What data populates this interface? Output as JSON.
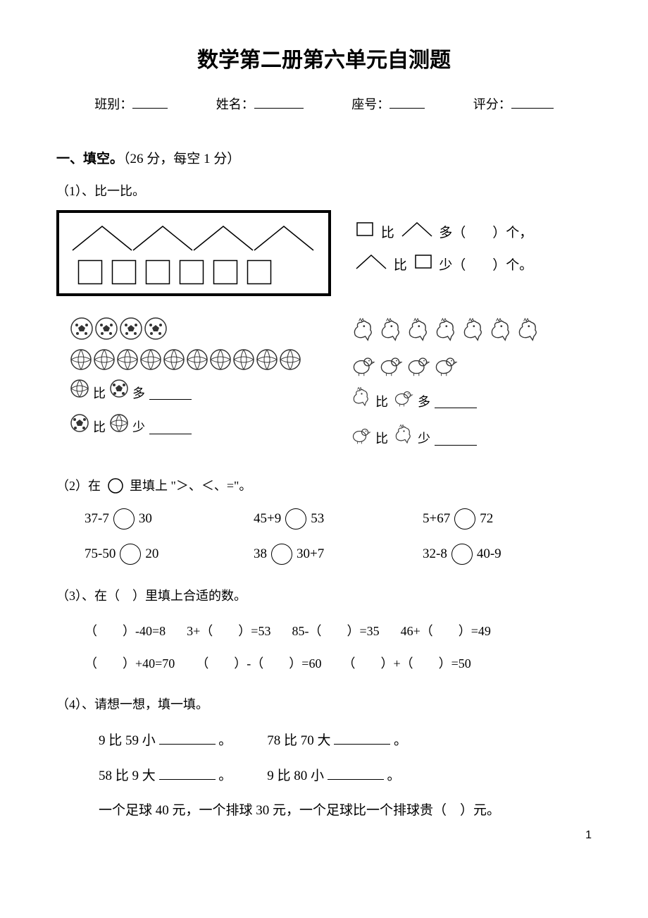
{
  "title": "数学第二册第六单元自测题",
  "header": {
    "class": "班别：",
    "name": "姓名：",
    "seat": "座号：",
    "grade": "评分："
  },
  "s1": {
    "head_bold": "一、填空。",
    "head_note": "（26 分，每空 1 分）",
    "q1_label": "（1）、比一比。",
    "compare1_pre": "比",
    "compare1_post": "多（　　）个，",
    "compare2_post": "少（　　）个。",
    "ball_cmp_more": "多",
    "ball_cmp_less": "少",
    "bi": "比",
    "q2_label": "（2）在",
    "q2_label2": "里填上 \"＞、＜、=\"。",
    "q2_items": [
      {
        "l": "37-7",
        "r": "30"
      },
      {
        "l": "45+9",
        "r": "53"
      },
      {
        "l": "5+67",
        "r": "72"
      },
      {
        "l": "75-50",
        "r": "20"
      },
      {
        "l": "38",
        "r": "30+7"
      },
      {
        "l": "32-8",
        "r": "40-9"
      }
    ],
    "q3_label": "（3）、在（　）里填上合适的数。",
    "q3_row1": [
      "（　　）-40=8",
      "3+（　　）=53",
      "85-（　　）=35",
      "46+（　　）=49"
    ],
    "q3_row2": [
      "（　　）+40=70",
      "（　　）-（　　）=60",
      "（　　）+（　　）=50"
    ],
    "q4_label": "（4）、请想一想，填一填。",
    "q4_r1a": "9 比 59 小",
    "q4_r1b": "78 比 70 大",
    "q4_r2a": "58 比 9 大",
    "q4_r2b": "9 比 80 小",
    "q4_period": "。",
    "q4_last": "一个足球 40 元，一个排球 30 元，一个足球比一个排球贵（　）元。"
  },
  "shapes": {
    "triangle_count": 4,
    "square_count": 6,
    "soccer_count": 4,
    "volley_count": 10,
    "hen_count": 7,
    "chick_count": 4
  },
  "page_num": "1",
  "colors": {
    "fg": "#000000",
    "bg": "#ffffff",
    "gray": "#555555"
  }
}
